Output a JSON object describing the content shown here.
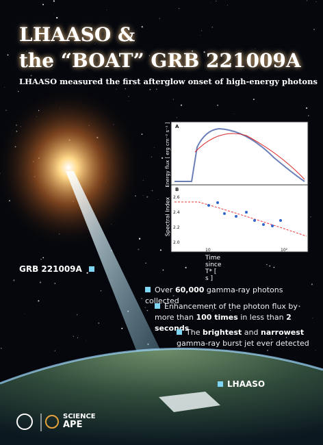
{
  "header": {
    "title_line1": "LHAASO &",
    "title_line2": "the “BOAT” GRB 221009A",
    "subtitle": "LHAASO measured the first afterglow onset of high-energy photons"
  },
  "inset": {
    "panel_a": "A",
    "panel_b": "B",
    "ylabel_a": "Energy flux [ erg cm⁻² s⁻¹ ]",
    "ylabel_b": "Spectral Index",
    "xlabel": "Time since T* [ s ]",
    "b_ticks": [
      "2.6",
      "2.4",
      "2.2",
      "2.0"
    ],
    "x_ticks": [
      "10",
      "10²"
    ]
  },
  "labels": {
    "grb": "GRB 221009A",
    "lhaaso": "LHAASO"
  },
  "bullets": [
    {
      "parts": [
        "Over ",
        "60,000",
        " gamma-ray photons collected"
      ]
    },
    {
      "parts": [
        "Enhancement of the photon flux by more than ",
        "100 times",
        " in less than ",
        "2 seconds"
      ]
    },
    {
      "parts": [
        "The ",
        "brightest",
        " and ",
        "narrowest",
        " gamma-ray burst jet ever detected"
      ]
    }
  ],
  "footer": {
    "logo_line1": "SCIENCE",
    "logo_line2": "APE"
  }
}
